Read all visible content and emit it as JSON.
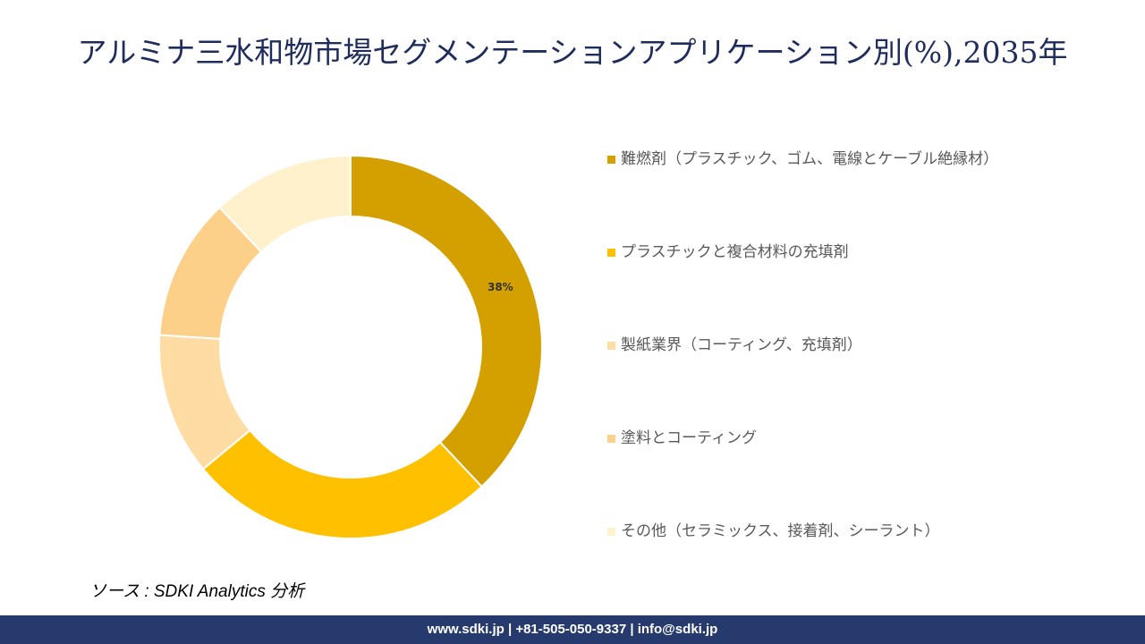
{
  "chart_data": {
    "type": "donut",
    "title": "アルミナ三水和物市場セグメンテーションアプリケーション別(%),2035年",
    "categories": [
      "難燃剤（プラスチック、ゴム、電線とケーブル絶縁材）",
      "プラスチックと複合材料の充填剤",
      "製紙業界（コーティング、充填剤）",
      "塗料とコーティング",
      "その他（セラミックス、接着剤、シーラント）"
    ],
    "values": [
      38,
      26,
      12,
      12,
      12
    ],
    "value_labels": [
      "38%",
      null,
      null,
      null,
      null
    ],
    "colors": [
      "#d4a000",
      "#ffc000",
      "#ffdca3",
      "#fdd08a",
      "#fff1cc"
    ]
  },
  "source": "ソース : SDKI Analytics 分析",
  "footer": "www.sdki.jp | +81-505-050-9337 | info@sdki.jp"
}
